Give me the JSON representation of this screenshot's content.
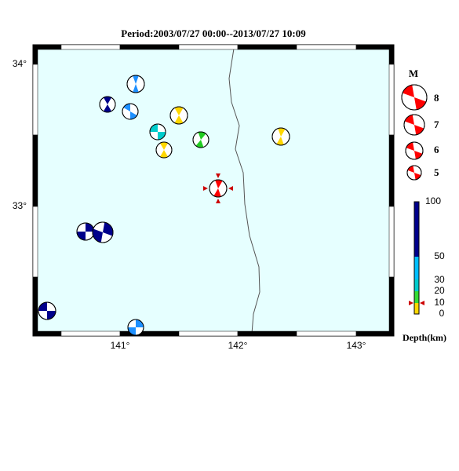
{
  "title": "Period:2003/07/27 00:00--2013/07/27 10:09",
  "x_ticks": [
    "141°",
    "142°",
    "143°"
  ],
  "y_ticks": [
    "34°",
    "33°"
  ],
  "magnitude_legend": {
    "title": "M",
    "labels": [
      "8",
      "7",
      "6",
      "5"
    ]
  },
  "depth_legend": {
    "labels": [
      "100",
      "50",
      "30",
      "20",
      "10",
      "0"
    ],
    "title": "Depth(km)"
  }
}
